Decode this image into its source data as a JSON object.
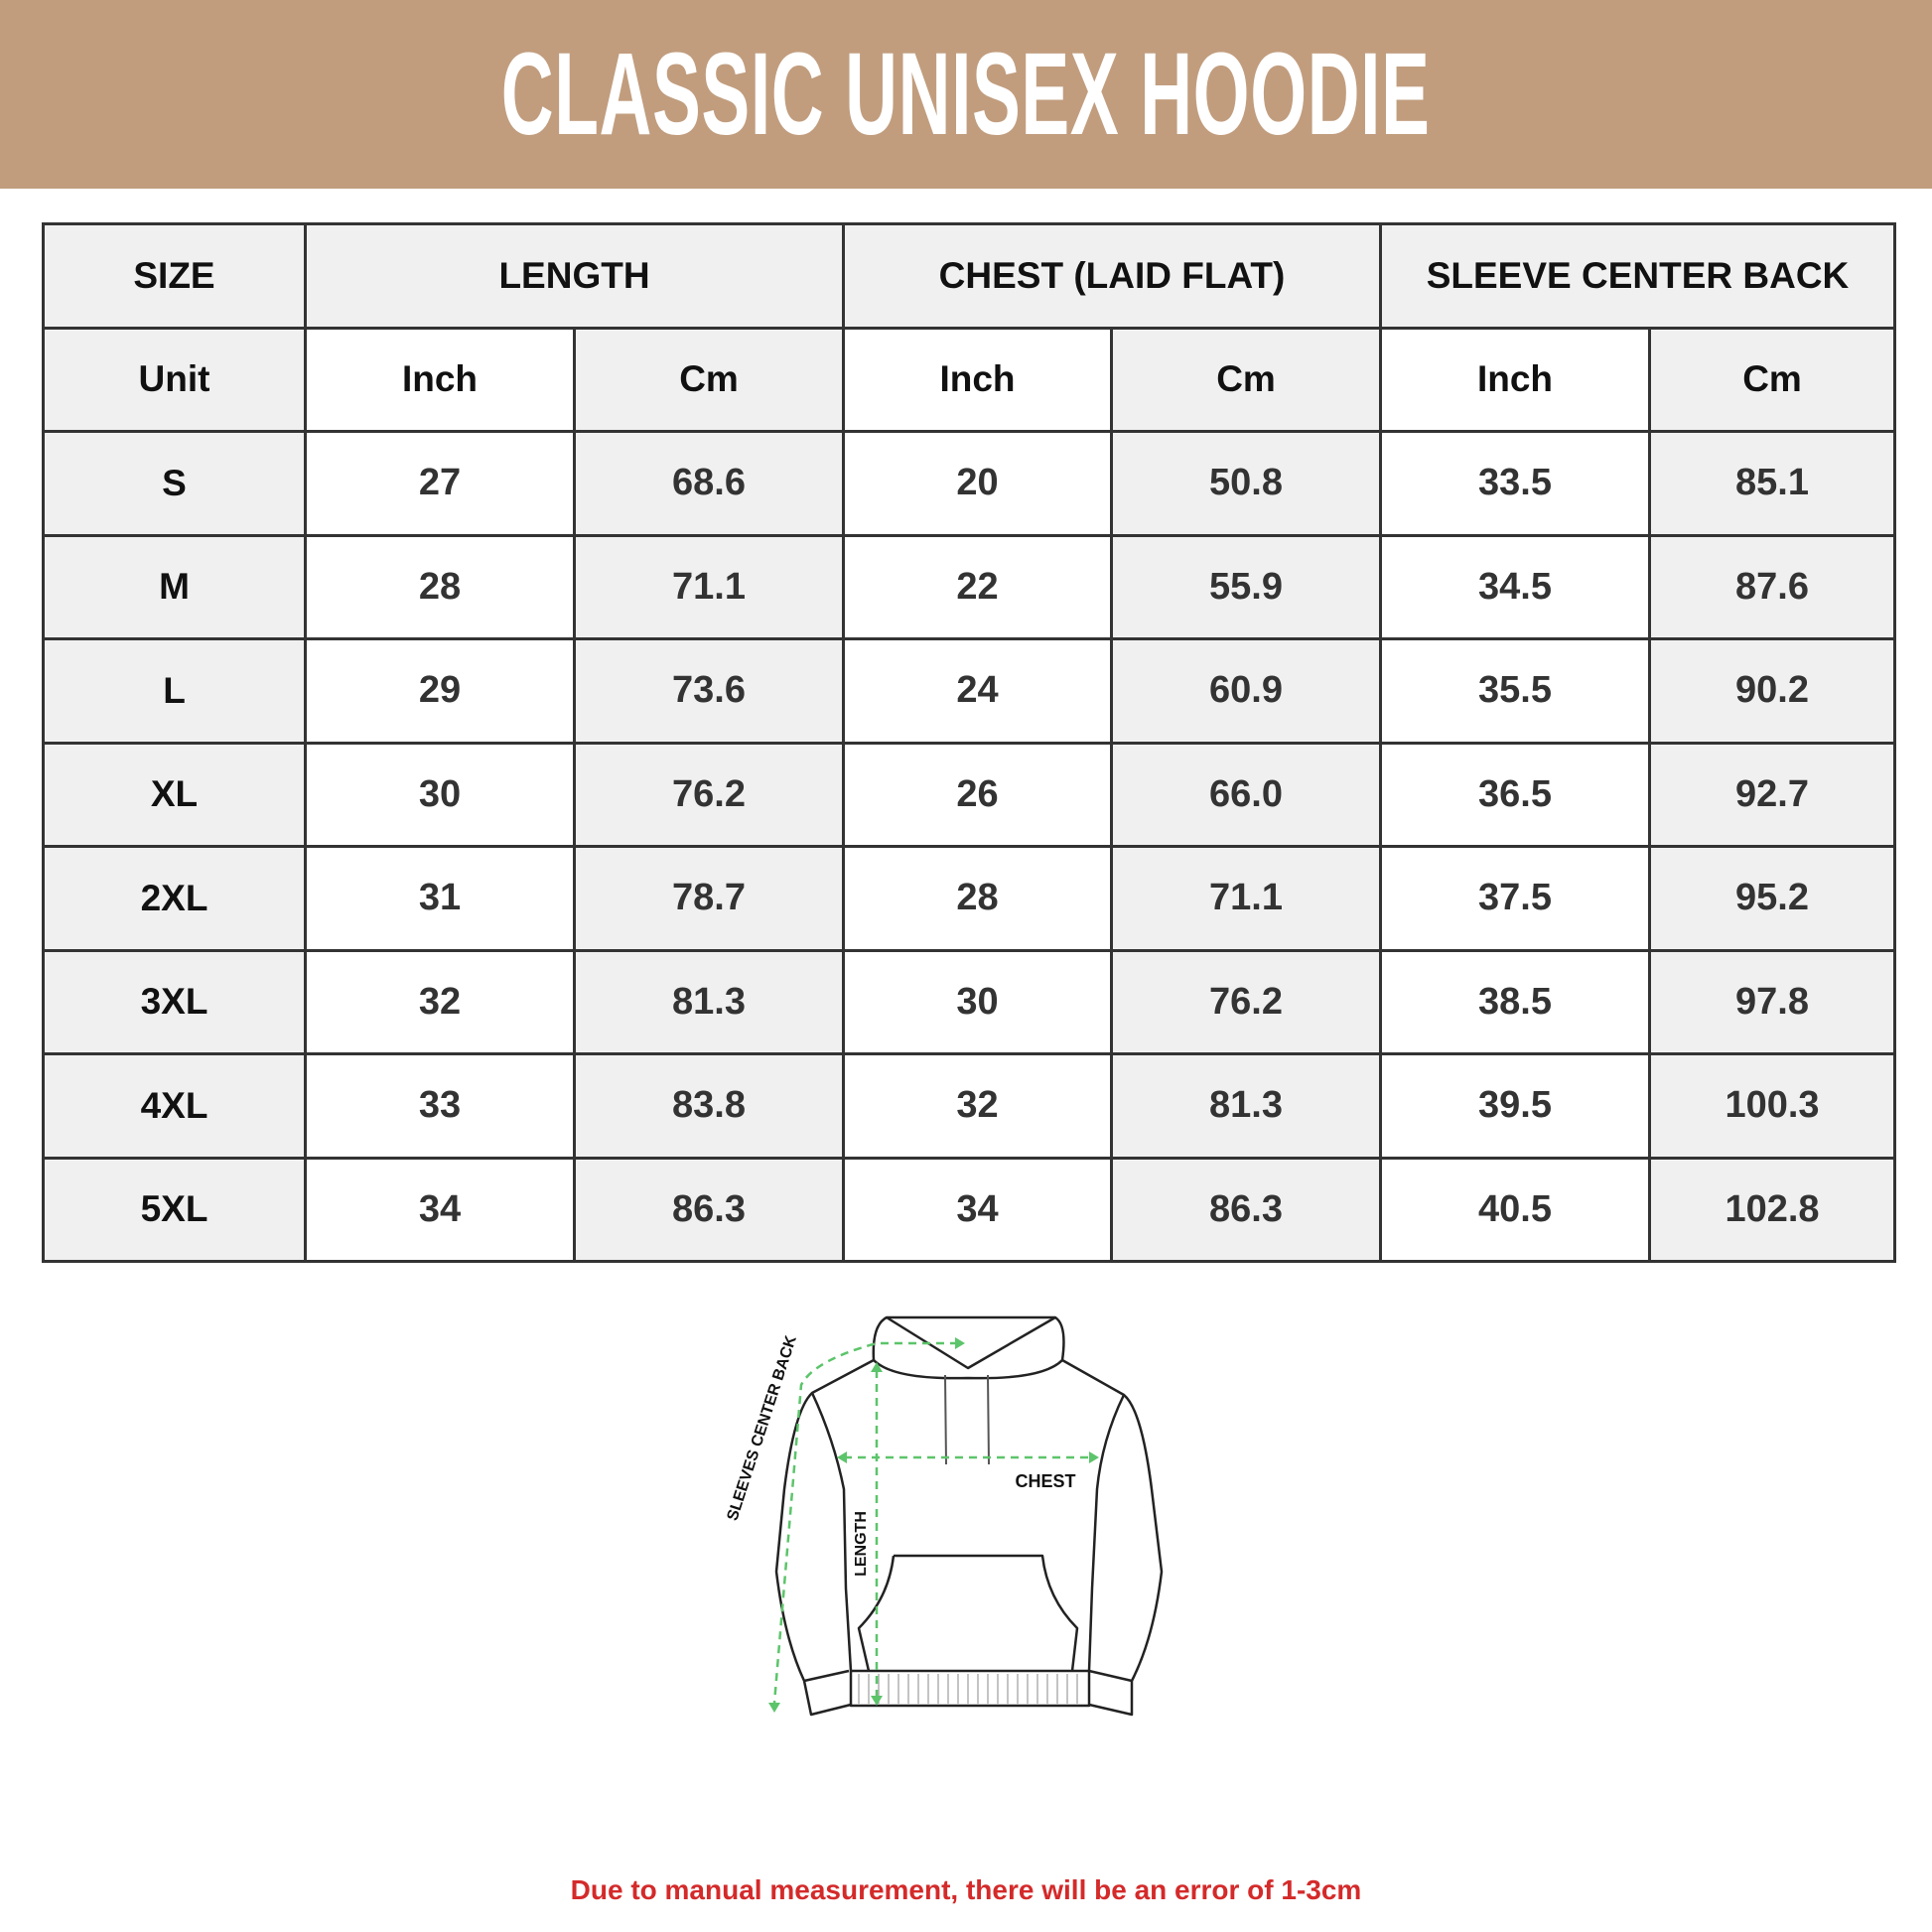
{
  "title": "CLASSIC UNISEX HOODIE",
  "colors": {
    "banner": "#c19d7e",
    "note": "#d42a2a",
    "arrows": "#5cc46a"
  },
  "table": {
    "headers": [
      "SIZE",
      "LENGTH",
      "CHEST (LAID FLAT)",
      "SLEEVE CENTER BACK"
    ],
    "units": [
      "Unit",
      "Inch",
      "Cm",
      "Inch",
      "Cm",
      "Inch",
      "Cm"
    ],
    "rows": [
      [
        "S",
        "27",
        "68.6",
        "20",
        "50.8",
        "33.5",
        "85.1"
      ],
      [
        "M",
        "28",
        "71.1",
        "22",
        "55.9",
        "34.5",
        "87.6"
      ],
      [
        "L",
        "29",
        "73.6",
        "24",
        "60.9",
        "35.5",
        "90.2"
      ],
      [
        "XL",
        "30",
        "76.2",
        "26",
        "66.0",
        "36.5",
        "92.7"
      ],
      [
        "2XL",
        "31",
        "78.7",
        "28",
        "71.1",
        "37.5",
        "95.2"
      ],
      [
        "3XL",
        "32",
        "81.3",
        "30",
        "76.2",
        "38.5",
        "97.8"
      ],
      [
        "4XL",
        "33",
        "83.8",
        "32",
        "81.3",
        "39.5",
        "100.3"
      ],
      [
        "5XL",
        "34",
        "86.3",
        "34",
        "86.3",
        "40.5",
        "102.8"
      ]
    ]
  },
  "diagram": {
    "chest_label": "CHEST",
    "length_label": "LENGTH",
    "sleeve_label": "SLEEVES CENTER BACK"
  },
  "note": "Due to manual measurement, there will be an error of 1-3cm"
}
